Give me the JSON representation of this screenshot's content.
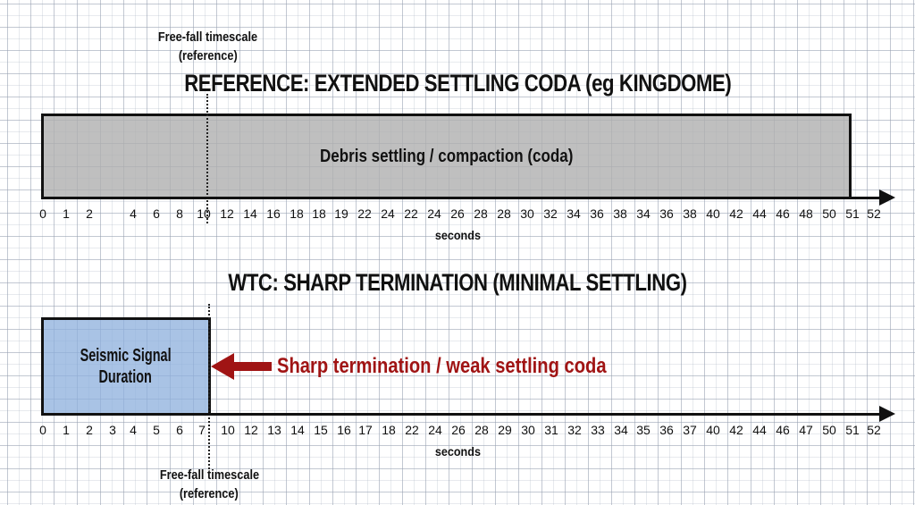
{
  "colors": {
    "grey_box": "#b0b0b0",
    "blue_box": "#a9c3e6",
    "accent_red": "#a01414",
    "axis": "#111111",
    "grid": "#c4cad3"
  },
  "top_chart": {
    "freefall_note_line1": "Free-fall timescale",
    "freefall_note_line2": "(reference)",
    "title": "REFERENCE: EXTENDED SETTLING CODA (eg KINGDOME)",
    "bar_label": "Debris settling / compaction (coda)",
    "axis_unit": "seconds",
    "ticks": [
      "0",
      "1",
      "2",
      "4",
      "6",
      "8",
      "10",
      "12",
      "14",
      "16",
      "18",
      "18",
      "19",
      "22",
      "24",
      "22",
      "24",
      "26",
      "28",
      "28",
      "30",
      "32",
      "34",
      "36",
      "38",
      "34",
      "36",
      "38",
      "40",
      "42",
      "44",
      "46",
      "48",
      "50",
      "51",
      "52"
    ]
  },
  "bottom_chart": {
    "title": "WTC: SHARP TERMINATION (MINIMAL SETTLING)",
    "bar_label_line1": "Seismic Signal",
    "bar_label_line2": "Duration",
    "annotation": "Sharp termination / weak settling coda",
    "axis_unit": "seconds",
    "freefall_note_line1": "Free-fall timescale",
    "freefall_note_line2": "(reference)",
    "ticks": [
      "0",
      "1",
      "2",
      "3",
      "4",
      "5",
      "6",
      "7",
      "10",
      "12",
      "13",
      "14",
      "15",
      "16",
      "17",
      "18",
      "22",
      "24",
      "26",
      "28",
      "29",
      "30",
      "31",
      "32",
      "33",
      "34",
      "35",
      "36",
      "37",
      "40",
      "42",
      "44",
      "46",
      "47",
      "50",
      "51",
      "52"
    ]
  },
  "chart_data": [
    {
      "type": "bar",
      "title": "REFERENCE: EXTENDED SETTLING CODA (eg KINGDOME)",
      "orientation": "horizontal-timeline",
      "categories": [
        "Debris settling / compaction (coda)"
      ],
      "start": [
        0
      ],
      "end": [
        51
      ],
      "xlabel": "seconds",
      "xlim": [
        0,
        52
      ],
      "tick_labels": [
        "0",
        "1",
        "2",
        "4",
        "6",
        "8",
        "10",
        "12",
        "14",
        "16",
        "18",
        "18",
        "19",
        "22",
        "24",
        "22",
        "24",
        "26",
        "28",
        "28",
        "30",
        "32",
        "34",
        "36",
        "38",
        "34",
        "36",
        "38",
        "40",
        "42",
        "44",
        "46",
        "48",
        "50",
        "51",
        "52"
      ],
      "reference_line": {
        "label": "Free-fall timescale (reference)",
        "x": 10
      },
      "grid": true
    },
    {
      "type": "bar",
      "title": "WTC: SHARP TERMINATION (MINIMAL SETTLING)",
      "orientation": "horizontal-timeline",
      "categories": [
        "Seismic Signal Duration"
      ],
      "start": [
        0
      ],
      "end": [
        7
      ],
      "xlabel": "seconds",
      "xlim": [
        0,
        52
      ],
      "tick_labels": [
        "0",
        "1",
        "2",
        "3",
        "4",
        "5",
        "6",
        "7",
        "10",
        "12",
        "13",
        "14",
        "15",
        "16",
        "17",
        "18",
        "22",
        "24",
        "26",
        "28",
        "29",
        "30",
        "31",
        "32",
        "33",
        "34",
        "35",
        "36",
        "37",
        "40",
        "42",
        "44",
        "46",
        "47",
        "50",
        "51",
        "52"
      ],
      "reference_line": {
        "label": "Free-fall timescale (reference)",
        "x": 7
      },
      "annotations": [
        {
          "text": "Sharp termination / weak settling coda",
          "points_to_x": 7
        }
      ],
      "grid": true
    }
  ]
}
